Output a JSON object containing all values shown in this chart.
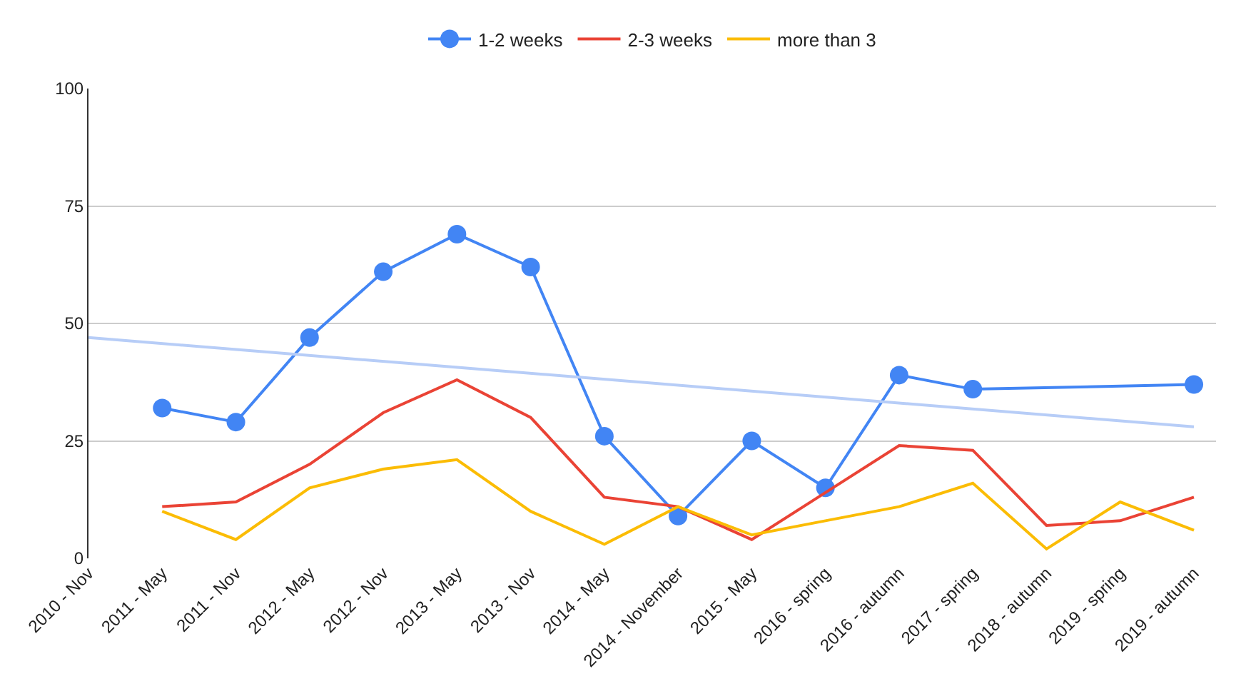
{
  "chart_data": {
    "type": "line",
    "categories": [
      "2010 - Nov",
      "2011 - May",
      "2011 - Nov",
      "2012 - May",
      "2012 - Nov",
      "2013 - May",
      "2013 - Nov",
      "2014 - May",
      "2014 - November",
      "2015 - May",
      "2016 - spring",
      "2016 - autumn",
      "2017 - spring",
      "2018 - autumn",
      "2019 - spring",
      "2019 - autumn"
    ],
    "series": [
      {
        "name": "1-2 weeks",
        "color": "#4285f4",
        "marker": "circle",
        "values": [
          null,
          32,
          29,
          47,
          61,
          69,
          62,
          26,
          9,
          25,
          15,
          39,
          36,
          null,
          null,
          37
        ]
      },
      {
        "name": "2-3 weeks",
        "color": "#ea4335",
        "marker": "none",
        "values": [
          null,
          11,
          12,
          20,
          31,
          38,
          30,
          13,
          11,
          4,
          14,
          24,
          23,
          7,
          8,
          13
        ]
      },
      {
        "name": "more than 3",
        "color": "#fbbc04",
        "marker": "none",
        "values": [
          null,
          10,
          4,
          15,
          19,
          21,
          10,
          3,
          11,
          5,
          8,
          11,
          16,
          2,
          12,
          6
        ]
      },
      {
        "type": "line",
        "color": "#b7cdf7",
        "marker": "none",
        "x": [
          "2010 - Nov",
          "2019 - autumn"
        ],
        "values": [
          47,
          28
        ]
      }
    ],
    "ylim": [
      0,
      100
    ],
    "yticks": [
      0,
      25,
      50,
      75,
      100
    ],
    "grid": "y",
    "legend": "top"
  }
}
